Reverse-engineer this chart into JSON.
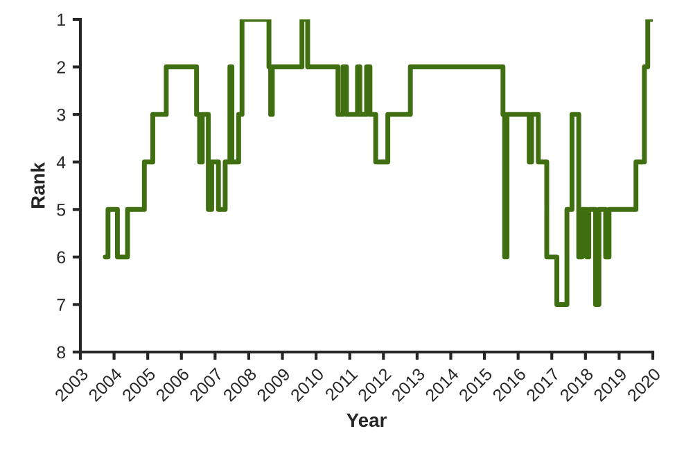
{
  "chart_data": {
    "type": "step",
    "xlabel": "Year",
    "ylabel": "Rank",
    "x": [
      2003.74,
      2003.82,
      2004.1,
      2004.4,
      2004.9,
      2005.15,
      2005.55,
      2006.45,
      2006.54,
      2006.62,
      2006.8,
      2006.9,
      2007.1,
      2007.3,
      2007.44,
      2007.5,
      2007.7,
      2007.8,
      2008.6,
      2008.65,
      2008.7,
      2009.58,
      2009.75,
      2010.65,
      2010.8,
      2010.9,
      2011.23,
      2011.3,
      2011.5,
      2011.6,
      2011.77,
      2012.13,
      2012.8,
      2015.55,
      2015.6,
      2015.67,
      2016.33,
      2016.4,
      2016.6,
      2016.85,
      2017.15,
      2017.45,
      2017.6,
      2017.8,
      2017.9,
      2018.04,
      2018.1,
      2018.3,
      2018.4,
      2018.6,
      2018.7,
      2019.5,
      2019.75,
      2019.85,
      2020
    ],
    "series": [
      {
        "color": "#3f6f10",
        "values": [
          6,
          5,
          6,
          5,
          4,
          3,
          2,
          3,
          4,
          3,
          5,
          4,
          5,
          4,
          2,
          4,
          3,
          1,
          2,
          3,
          2,
          1,
          2,
          3,
          2,
          3,
          2,
          3,
          2,
          3,
          4,
          3,
          2,
          3,
          6,
          3,
          4,
          3,
          4,
          6,
          7,
          5,
          3,
          6,
          5,
          6,
          5,
          7,
          5,
          6,
          5,
          4,
          2,
          1,
          1
        ]
      }
    ],
    "xlim": [
      2003,
      2020
    ],
    "xticks": [
      2003,
      2004,
      2005,
      2006,
      2007,
      2008,
      2009,
      2010,
      2011,
      2012,
      2013,
      2014,
      2015,
      2016,
      2017,
      2018,
      2019,
      2020
    ],
    "ylim": [
      8,
      1
    ],
    "yticks": [
      1,
      2,
      3,
      4,
      5,
      6,
      7,
      8
    ],
    "grid": false,
    "legend": false,
    "line_style": "solid"
  }
}
